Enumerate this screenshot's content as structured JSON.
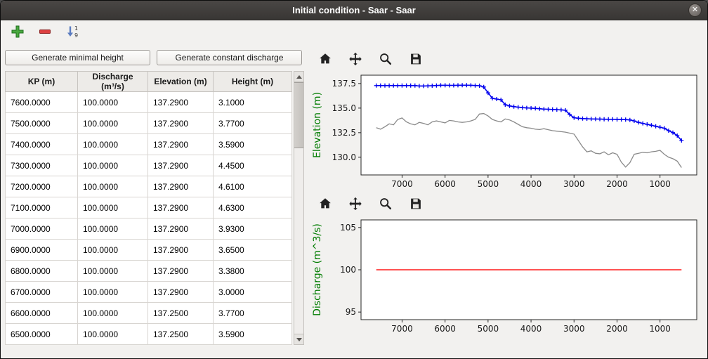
{
  "window": {
    "title": "Initial condition - Saar - Saar",
    "close_glyph": "✕"
  },
  "toolbar": {
    "icons": [
      "plus-icon",
      "minus-icon",
      "sort-ascending-icon"
    ]
  },
  "left_panel": {
    "buttons": {
      "minimal_height": "Generate minimal height",
      "constant_discharge": "Generate constant discharge"
    },
    "table": {
      "columns": [
        "KP (m)",
        "Discharge (m³/s)",
        "Elevation (m)",
        "Height (m)"
      ],
      "rows": [
        [
          "7600.0000",
          "100.0000",
          "137.2900",
          "3.1000"
        ],
        [
          "7500.0000",
          "100.0000",
          "137.2900",
          "3.7700"
        ],
        [
          "7400.0000",
          "100.0000",
          "137.2900",
          "3.5900"
        ],
        [
          "7300.0000",
          "100.0000",
          "137.2900",
          "4.4500"
        ],
        [
          "7200.0000",
          "100.0000",
          "137.2900",
          "4.6100"
        ],
        [
          "7100.0000",
          "100.0000",
          "137.2900",
          "4.6300"
        ],
        [
          "7000.0000",
          "100.0000",
          "137.2900",
          "3.9300"
        ],
        [
          "6900.0000",
          "100.0000",
          "137.2900",
          "3.6500"
        ],
        [
          "6800.0000",
          "100.0000",
          "137.2900",
          "3.3800"
        ],
        [
          "6700.0000",
          "100.0000",
          "137.2900",
          "3.0000"
        ],
        [
          "6600.0000",
          "100.0000",
          "137.2500",
          "3.7700"
        ],
        [
          "6500.0000",
          "100.0000",
          "137.2500",
          "3.5900"
        ]
      ]
    }
  },
  "plots": {
    "toolbar_icons": [
      "home-icon",
      "pan-icon",
      "zoom-icon",
      "save-icon"
    ]
  },
  "colors": {
    "titlebar": "#3c3a38",
    "ylabel_green": "#007c00",
    "water_line_blue": "#0000ee",
    "bottom_line_gray": "#8a8a8a",
    "discharge_line_red": "#ff1a1a"
  },
  "chart_data": [
    {
      "type": "line",
      "title": "",
      "xlabel": "",
      "ylabel": "Elevation (m)",
      "ylabel_color": "#007c00",
      "xlim": [
        7955,
        145
      ],
      "ylim": [
        128.2,
        138.35
      ],
      "xticks": [
        7000,
        6000,
        5000,
        4000,
        3000,
        2000,
        1000
      ],
      "xtick_labels": [
        "7000",
        "6000",
        "5000",
        "4000",
        "3000",
        "2000",
        "1000"
      ],
      "yticks": [
        130,
        132.5,
        135,
        137.5
      ],
      "ytick_labels": [
        "130.0",
        "132.5",
        "135.0",
        "137.5"
      ],
      "grid": false,
      "legend": "none",
      "series": [
        {
          "name": "water-elevation",
          "color": "#0000ee",
          "marker": "+",
          "line_width": 1.6,
          "x": [
            7600,
            7500,
            7400,
            7300,
            7200,
            7100,
            7000,
            6900,
            6800,
            6700,
            6600,
            6500,
            6400,
            6300,
            6200,
            6100,
            6000,
            5900,
            5800,
            5700,
            5600,
            5500,
            5400,
            5300,
            5200,
            5100,
            5000,
            4900,
            4800,
            4700,
            4600,
            4500,
            4400,
            4300,
            4200,
            4100,
            4000,
            3900,
            3800,
            3700,
            3600,
            3500,
            3400,
            3300,
            3200,
            3100,
            3000,
            2900,
            2800,
            2700,
            2600,
            2500,
            2400,
            2300,
            2200,
            2100,
            2000,
            1900,
            1800,
            1700,
            1600,
            1500,
            1400,
            1300,
            1200,
            1100,
            1000,
            900,
            800,
            700,
            600,
            500
          ],
          "y": [
            137.29,
            137.29,
            137.29,
            137.29,
            137.29,
            137.29,
            137.29,
            137.29,
            137.29,
            137.29,
            137.25,
            137.25,
            137.26,
            137.28,
            137.3,
            137.32,
            137.32,
            137.31,
            137.31,
            137.32,
            137.33,
            137.33,
            137.32,
            137.3,
            137.28,
            137.15,
            136.55,
            136.0,
            135.92,
            135.85,
            135.35,
            135.22,
            135.15,
            135.1,
            135.05,
            135.02,
            135.0,
            134.97,
            134.93,
            134.9,
            134.88,
            134.86,
            134.84,
            134.82,
            134.78,
            134.35,
            134.02,
            133.97,
            133.93,
            133.92,
            133.9,
            133.89,
            133.88,
            133.87,
            133.86,
            133.86,
            133.85,
            133.84,
            133.83,
            133.8,
            133.7,
            133.55,
            133.45,
            133.35,
            133.25,
            133.15,
            133.05,
            132.95,
            132.7,
            132.5,
            132.2,
            131.7
          ]
        },
        {
          "name": "bottom-elevation",
          "color": "#8a8a8a",
          "marker": "none",
          "line_width": 1.3,
          "x": [
            7600,
            7500,
            7400,
            7300,
            7200,
            7100,
            7000,
            6900,
            6800,
            6700,
            6600,
            6500,
            6400,
            6300,
            6200,
            6100,
            6000,
            5900,
            5800,
            5700,
            5600,
            5500,
            5400,
            5300,
            5200,
            5100,
            5000,
            4900,
            4800,
            4700,
            4600,
            4500,
            4400,
            4300,
            4200,
            4100,
            4000,
            3900,
            3800,
            3700,
            3600,
            3500,
            3400,
            3300,
            3200,
            3100,
            3000,
            2900,
            2800,
            2700,
            2600,
            2500,
            2400,
            2300,
            2200,
            2100,
            2000,
            1900,
            1800,
            1700,
            1600,
            1500,
            1400,
            1300,
            1200,
            1100,
            1000,
            900,
            800,
            700,
            600,
            500
          ],
          "y": [
            133.0,
            132.85,
            133.1,
            133.4,
            133.3,
            133.85,
            134.0,
            133.6,
            133.4,
            133.3,
            133.55,
            133.45,
            133.3,
            133.6,
            133.7,
            133.6,
            133.5,
            133.75,
            133.7,
            133.6,
            133.55,
            133.6,
            133.7,
            133.85,
            134.4,
            134.45,
            134.2,
            133.85,
            133.7,
            133.6,
            133.9,
            133.8,
            133.6,
            133.35,
            133.1,
            133.0,
            132.95,
            132.85,
            132.82,
            132.9,
            132.8,
            132.7,
            132.65,
            132.6,
            132.55,
            132.45,
            132.35,
            131.7,
            131.05,
            130.55,
            130.65,
            130.4,
            130.35,
            130.55,
            130.25,
            130.45,
            130.3,
            129.5,
            129.0,
            129.45,
            130.3,
            130.4,
            130.5,
            130.45,
            130.55,
            130.6,
            130.7,
            130.3,
            130.0,
            129.85,
            129.6,
            128.95
          ]
        }
      ]
    },
    {
      "type": "line",
      "title": "",
      "xlabel": "",
      "ylabel": "Discharge (m^3/s)",
      "ylabel_color": "#007c00",
      "xlim": [
        7955,
        145
      ],
      "ylim": [
        94.1,
        105.9
      ],
      "xticks": [
        7000,
        6000,
        5000,
        4000,
        3000,
        2000,
        1000
      ],
      "xtick_labels": [
        "7000",
        "6000",
        "5000",
        "4000",
        "3000",
        "2000",
        "1000"
      ],
      "yticks": [
        95,
        100,
        105
      ],
      "ytick_labels": [
        "95",
        "100",
        "105"
      ],
      "grid": false,
      "legend": "none",
      "series": [
        {
          "name": "constant-discharge",
          "color": "#ff1a1a",
          "marker": "none",
          "line_width": 1.6,
          "x": [
            7600,
            500
          ],
          "y": [
            100,
            100
          ]
        }
      ]
    }
  ]
}
